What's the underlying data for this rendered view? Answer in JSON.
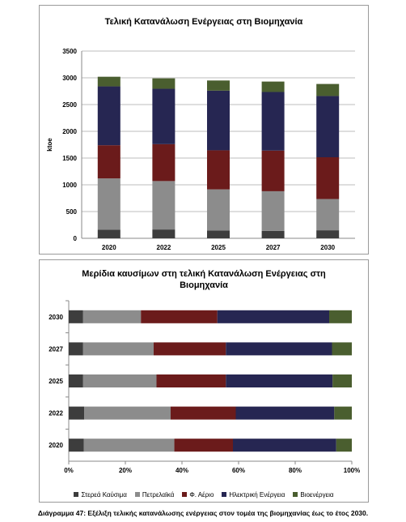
{
  "chart_data": [
    {
      "type": "stacked-bar",
      "title": "Τελική Κατανάλωση Ενέργειας στη Βιομηχανία",
      "ylabel": "ktoe",
      "ylim": [
        0,
        3500
      ],
      "yticks": [
        0,
        500,
        1000,
        1500,
        2000,
        2500,
        3000,
        3500
      ],
      "grid": true,
      "categories": [
        "2020",
        "2022",
        "2025",
        "2027",
        "2030"
      ],
      "series": [
        {
          "name": "Στερεά Καύσιμα",
          "values": [
            160,
            165,
            145,
            140,
            150
          ]
        },
        {
          "name": "Πετρελαϊκά",
          "values": [
            960,
            905,
            770,
            740,
            585
          ]
        },
        {
          "name": "Φ. Αέριο",
          "values": [
            620,
            690,
            730,
            760,
            780
          ]
        },
        {
          "name": "Ηλεκτρική Ενέργεια",
          "values": [
            1100,
            1035,
            1115,
            1095,
            1145
          ]
        },
        {
          "name": "Βιοενέργεια",
          "values": [
            180,
            195,
            190,
            195,
            225
          ]
        }
      ]
    },
    {
      "type": "stacked-bar-horizontal-100",
      "title": "Μερίδια καυσίμων στη τελική Κατανάλωση Ενέργειας στη Βιομηχανία",
      "xlim": [
        0,
        100
      ],
      "xticks": [
        "0%",
        "20%",
        "40%",
        "60%",
        "80%",
        "100%"
      ],
      "categories": [
        "2030",
        "2027",
        "2025",
        "2022",
        "2020"
      ],
      "series": [
        {
          "name": "Στερεά Καύσιμα",
          "values": [
            5,
            5,
            5,
            5.5,
            5.3
          ]
        },
        {
          "name": "Πετρελαϊκά",
          "values": [
            20.5,
            25,
            26,
            30.5,
            32
          ]
        },
        {
          "name": "Φ. Αέριο",
          "values": [
            27,
            25.5,
            24.5,
            23,
            20.7
          ]
        },
        {
          "name": "Ηλεκτρική Ενέργεια",
          "values": [
            39.5,
            37.5,
            37.7,
            34.8,
            36.5
          ]
        },
        {
          "name": "Βιοενέργεια",
          "values": [
            8,
            7,
            6.8,
            6.2,
            5.5
          ]
        }
      ],
      "legend_position": "bottom"
    }
  ],
  "colors": {
    "Στερεά Καύσιμα": "#3d3d3d",
    "Πετρελαϊκά": "#8c8c8c",
    "Φ. Αέριο": "#6b1b1b",
    "Ηλεκτρική Ενέργεια": "#262652",
    "Βιοενέργεια": "#4a5e2f"
  },
  "caption": "Διάγραμμα 47: Εξέλιξη τελικής κατανάλωσης ενέργειας στον τομέα της βιομηχανίας έως το έτος 2030."
}
